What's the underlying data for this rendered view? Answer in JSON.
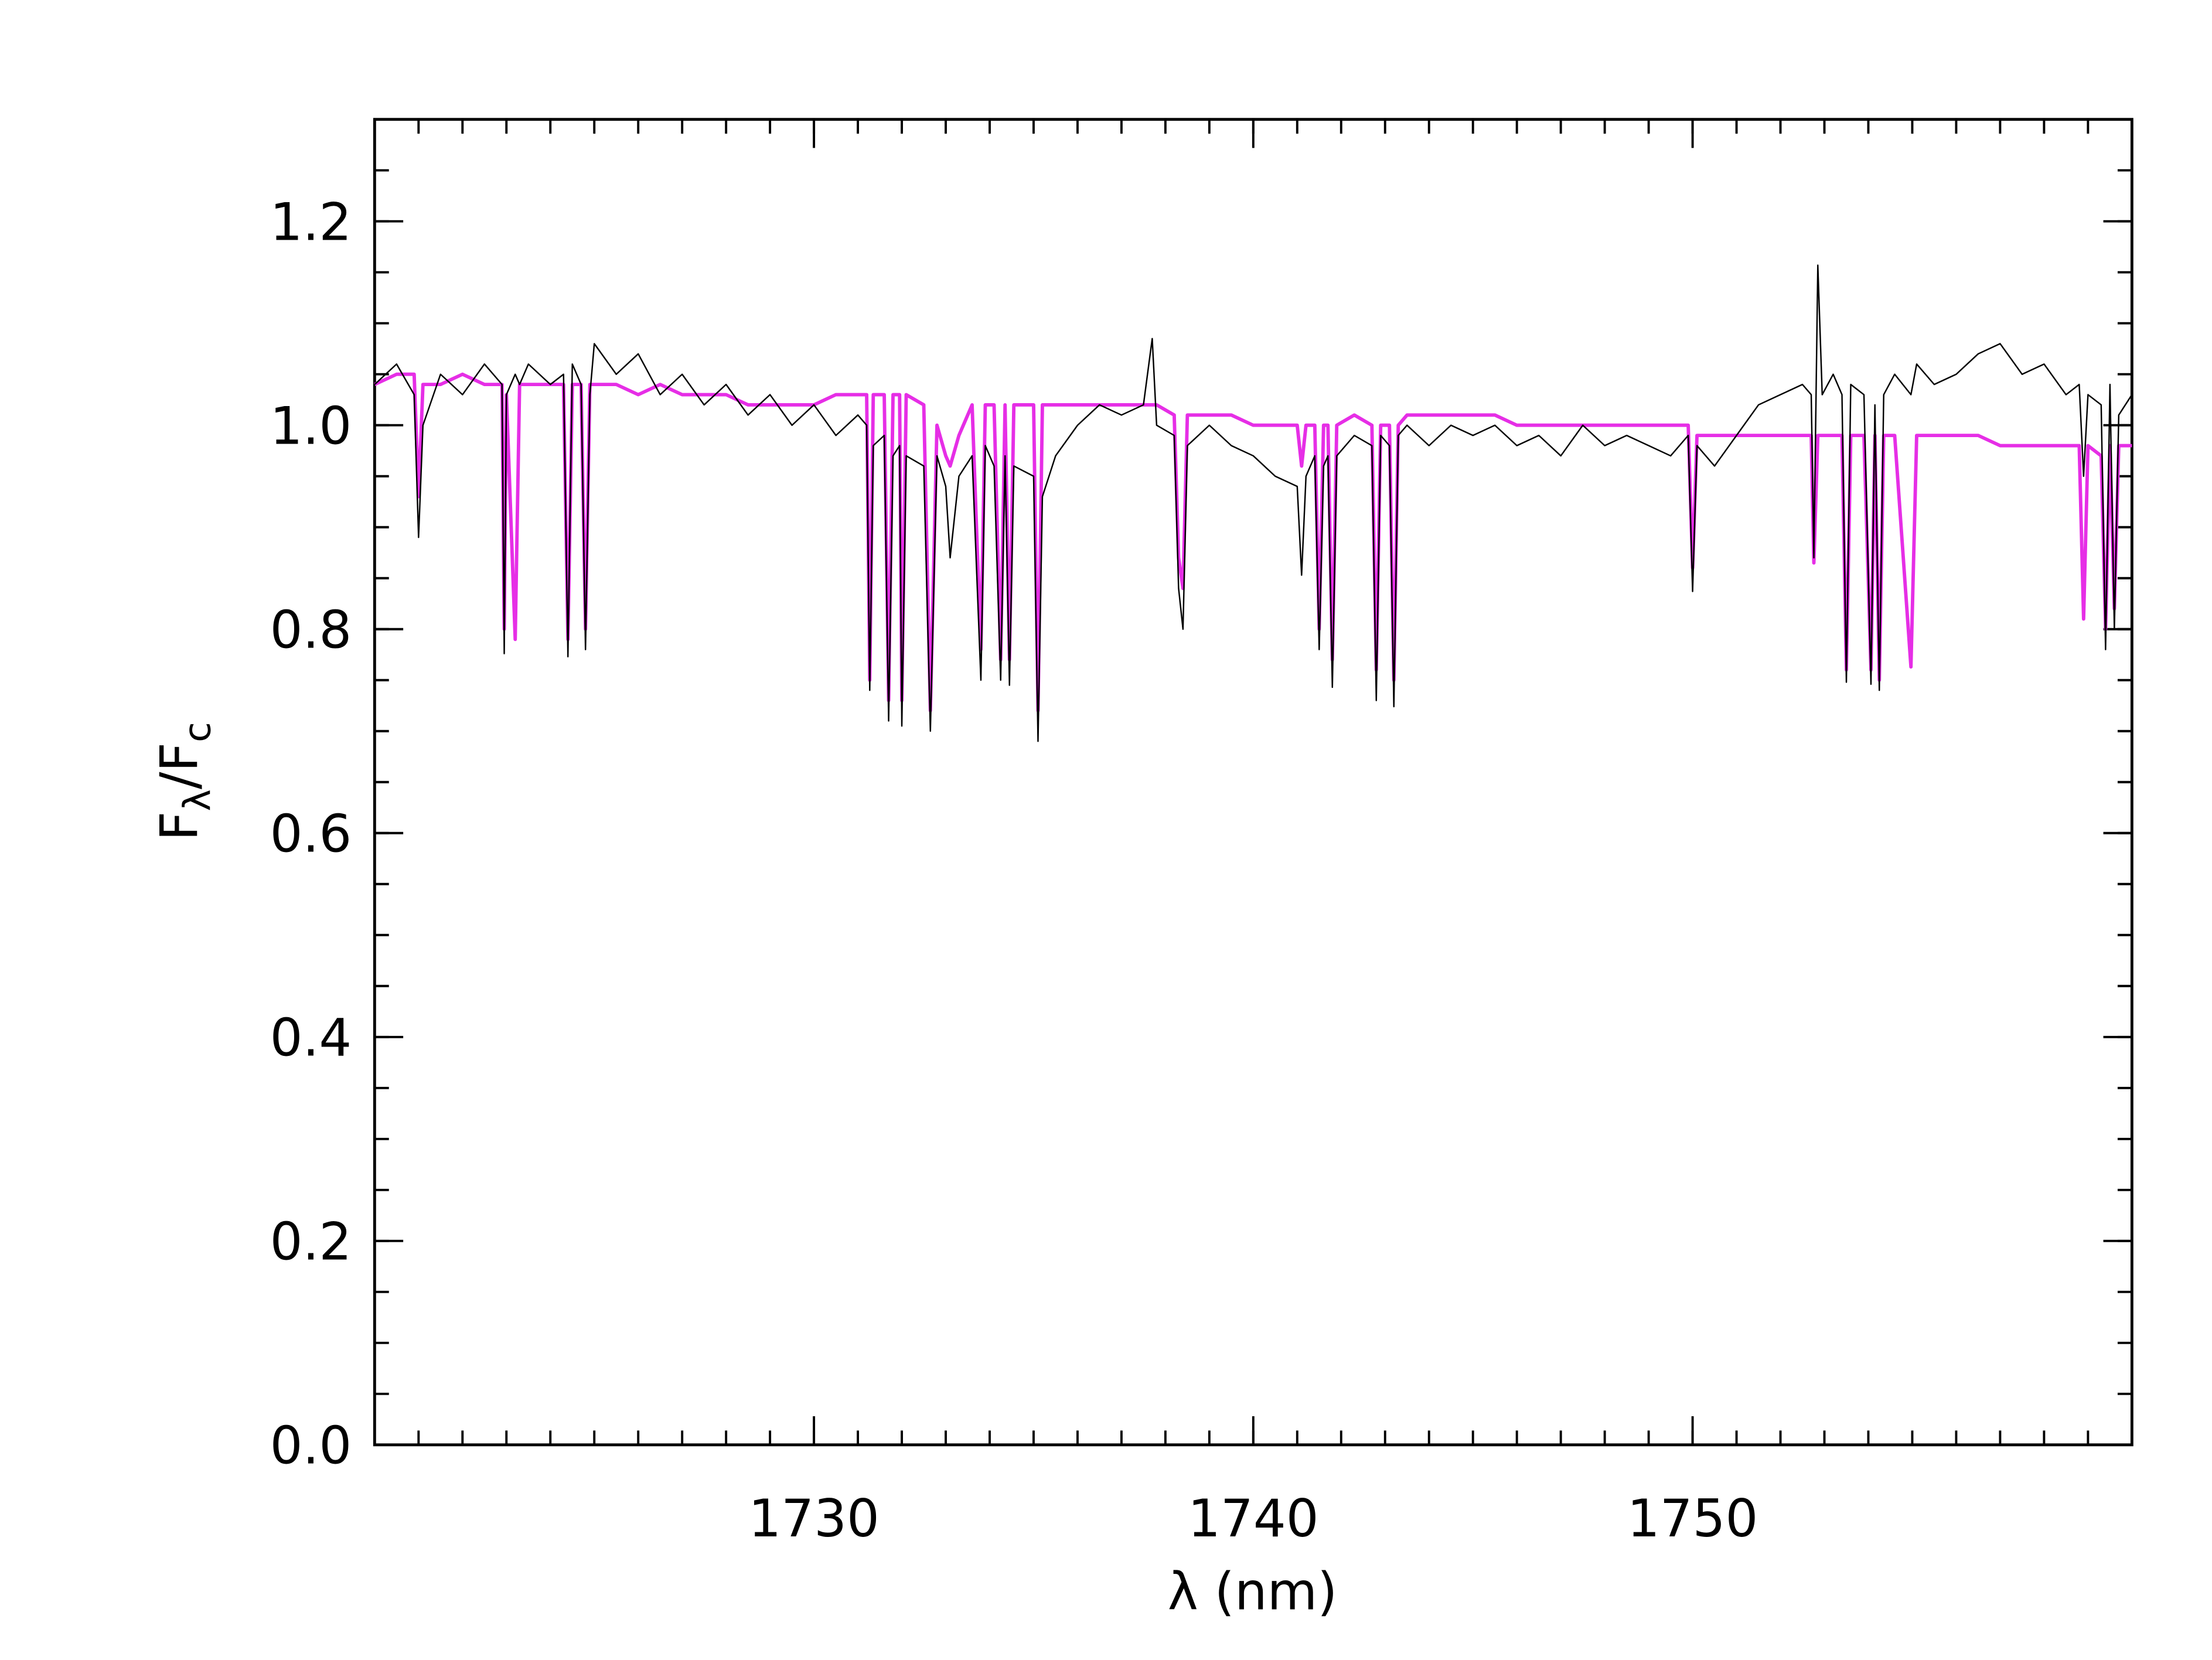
{
  "chart_data": {
    "type": "line",
    "xlabel": "λ (nm)",
    "ylabel_parts": [
      "F",
      "λ",
      "/F",
      "c"
    ],
    "xlim": [
      1720,
      1760
    ],
    "xticks": [
      1730,
      1740,
      1750
    ],
    "ylim": [
      0,
      1.3
    ],
    "yticks": [
      {
        "value": 0,
        "label": "0.0"
      },
      0.2,
      0.4,
      0.6,
      0.8,
      {
        "value": 1,
        "label": "1.0"
      },
      1.2
    ],
    "x": [
      1720.0,
      1720.5,
      1720.9,
      1721.0,
      1721.1,
      1721.5,
      1722.0,
      1722.5,
      1722.9,
      1722.95,
      1723.0,
      1723.2,
      1723.3,
      1723.5,
      1724.0,
      1724.3,
      1724.4,
      1724.5,
      1724.7,
      1724.8,
      1724.9,
      1725.0,
      1725.5,
      1726.0,
      1726.5,
      1727.0,
      1727.5,
      1728.0,
      1728.5,
      1729.0,
      1729.5,
      1730.0,
      1730.5,
      1731.0,
      1731.2,
      1731.27,
      1731.35,
      1731.6,
      1731.7,
      1731.8,
      1731.95,
      1732.0,
      1732.1,
      1732.5,
      1732.65,
      1732.8,
      1733.0,
      1733.1,
      1733.3,
      1733.6,
      1733.8,
      1733.9,
      1734.1,
      1734.25,
      1734.35,
      1734.45,
      1734.55,
      1735.0,
      1735.1,
      1735.2,
      1735.5,
      1736.0,
      1736.5,
      1737.0,
      1737.5,
      1737.7,
      1737.8,
      1738.2,
      1738.3,
      1738.4,
      1738.5,
      1739.0,
      1739.5,
      1740.0,
      1740.5,
      1741.0,
      1741.1,
      1741.2,
      1741.4,
      1741.5,
      1741.6,
      1741.7,
      1741.8,
      1741.9,
      1742.3,
      1742.7,
      1742.8,
      1742.9,
      1743.1,
      1743.2,
      1743.3,
      1743.5,
      1744.0,
      1744.5,
      1745.0,
      1745.5,
      1746.0,
      1746.5,
      1747.0,
      1747.5,
      1748.0,
      1748.5,
      1749.0,
      1749.5,
      1749.9,
      1750.0,
      1750.1,
      1750.5,
      1751.0,
      1751.5,
      1752.0,
      1752.5,
      1752.7,
      1752.76,
      1752.85,
      1752.95,
      1753.2,
      1753.4,
      1753.5,
      1753.6,
      1753.9,
      1754.06,
      1754.15,
      1754.25,
      1754.35,
      1754.6,
      1754.97,
      1755.1,
      1755.5,
      1756.0,
      1756.5,
      1757.0,
      1757.5,
      1758.0,
      1758.5,
      1758.8,
      1758.9,
      1759.0,
      1759.3,
      1759.4,
      1759.5,
      1759.6,
      1759.7,
      1760.0
    ],
    "series": [
      {
        "color": "#000000",
        "values": [
          1.04,
          1.06,
          1.03,
          0.89,
          1.0,
          1.05,
          1.03,
          1.06,
          1.04,
          0.776,
          1.03,
          1.05,
          1.04,
          1.06,
          1.04,
          1.05,
          0.773,
          1.06,
          1.04,
          0.78,
          1.03,
          1.08,
          1.05,
          1.07,
          1.03,
          1.05,
          1.02,
          1.04,
          1.01,
          1.03,
          1.0,
          1.02,
          0.99,
          1.01,
          1.0,
          0.74,
          0.98,
          0.99,
          0.71,
          0.97,
          0.98,
          0.705,
          0.97,
          0.96,
          0.7,
          0.97,
          0.94,
          0.87,
          0.95,
          0.97,
          0.75,
          0.98,
          0.96,
          0.75,
          0.97,
          0.745,
          0.96,
          0.95,
          0.69,
          0.93,
          0.97,
          1.0,
          1.02,
          1.01,
          1.02,
          1.085,
          1.0,
          0.99,
          0.84,
          0.8,
          0.98,
          1.0,
          0.98,
          0.97,
          0.95,
          0.94,
          0.853,
          0.95,
          0.97,
          0.78,
          0.96,
          0.97,
          0.743,
          0.97,
          0.99,
          0.98,
          0.73,
          0.99,
          0.98,
          0.724,
          0.99,
          1.0,
          0.98,
          1.0,
          0.99,
          1.0,
          0.98,
          0.99,
          0.97,
          1.0,
          0.98,
          0.99,
          0.98,
          0.97,
          0.99,
          0.837,
          0.98,
          0.96,
          0.99,
          1.02,
          1.03,
          1.04,
          1.03,
          0.87,
          1.157,
          1.03,
          1.05,
          1.03,
          0.748,
          1.04,
          1.03,
          0.746,
          1.02,
          0.74,
          1.03,
          1.05,
          1.03,
          1.06,
          1.04,
          1.05,
          1.07,
          1.08,
          1.05,
          1.06,
          1.03,
          1.04,
          0.95,
          1.03,
          1.02,
          0.78,
          1.04,
          0.8,
          1.01,
          1.03
        ]
      },
      {
        "color": "#e62ee6",
        "values": [
          1.04,
          1.05,
          1.05,
          0.93,
          1.04,
          1.04,
          1.05,
          1.04,
          1.04,
          0.8,
          1.03,
          0.79,
          1.04,
          1.04,
          1.04,
          1.04,
          0.79,
          1.04,
          1.04,
          0.8,
          1.04,
          1.04,
          1.04,
          1.03,
          1.04,
          1.03,
          1.03,
          1.03,
          1.02,
          1.02,
          1.02,
          1.02,
          1.03,
          1.03,
          1.03,
          0.75,
          1.03,
          1.03,
          0.73,
          1.03,
          1.03,
          0.73,
          1.03,
          1.02,
          0.72,
          1.0,
          0.97,
          0.96,
          0.99,
          1.02,
          0.78,
          1.02,
          1.02,
          0.77,
          1.02,
          0.77,
          1.02,
          1.02,
          0.72,
          1.02,
          1.02,
          1.02,
          1.02,
          1.02,
          1.02,
          1.02,
          1.02,
          1.01,
          0.87,
          0.84,
          1.01,
          1.01,
          1.01,
          1.0,
          1.0,
          1.0,
          0.96,
          1.0,
          1.0,
          0.8,
          1.0,
          1.0,
          0.77,
          1.0,
          1.01,
          1.0,
          0.76,
          1.0,
          1.0,
          0.75,
          1.0,
          1.01,
          1.01,
          1.01,
          1.01,
          1.01,
          1.0,
          1.0,
          1.0,
          1.0,
          1.0,
          1.0,
          1.0,
          1.0,
          1.0,
          0.86,
          0.99,
          0.99,
          0.99,
          0.99,
          0.99,
          0.99,
          0.99,
          0.865,
          0.99,
          0.99,
          0.99,
          0.99,
          0.76,
          0.99,
          0.99,
          0.76,
          0.99,
          0.75,
          0.99,
          0.99,
          0.763,
          0.99,
          0.99,
          0.99,
          0.99,
          0.98,
          0.98,
          0.98,
          0.98,
          0.98,
          0.81,
          0.98,
          0.97,
          0.8,
          0.98,
          0.82,
          0.98,
          0.98
        ]
      }
    ]
  }
}
